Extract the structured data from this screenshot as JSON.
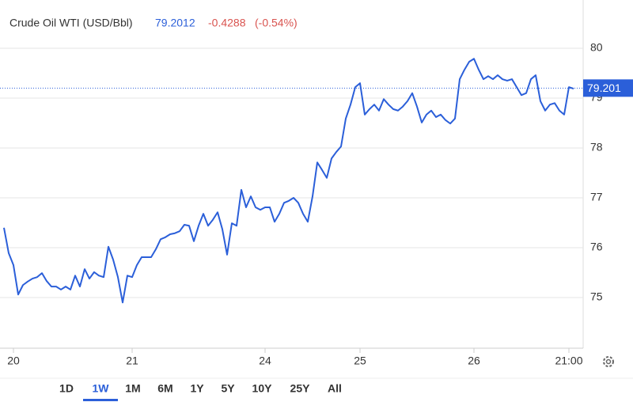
{
  "chart_data": {
    "type": "line",
    "header": {
      "name": "Crude Oil WTI (USD/Bbl)",
      "price": "79.2012",
      "change": "-0.4288",
      "change_pct": "(-0.54%)"
    },
    "categories": [
      null,
      null,
      "20",
      null,
      null,
      null,
      null,
      null,
      null,
      null,
      null,
      null,
      null,
      null,
      null,
      null,
      null,
      null,
      null,
      null,
      null,
      null,
      null,
      null,
      null,
      null,
      null,
      "21",
      null,
      null,
      null,
      null,
      null,
      null,
      null,
      null,
      null,
      null,
      null,
      null,
      null,
      null,
      null,
      null,
      null,
      null,
      null,
      null,
      null,
      null,
      null,
      null,
      null,
      null,
      null,
      "24",
      null,
      null,
      null,
      null,
      null,
      null,
      null,
      null,
      null,
      null,
      null,
      null,
      null,
      null,
      null,
      null,
      null,
      null,
      null,
      "25",
      null,
      null,
      null,
      null,
      null,
      null,
      null,
      null,
      null,
      null,
      null,
      null,
      null,
      null,
      null,
      null,
      null,
      null,
      null,
      null,
      null,
      null,
      null,
      "26",
      null,
      null,
      null,
      null,
      null,
      null,
      null,
      null,
      null,
      null,
      null,
      null,
      null,
      null,
      null,
      null,
      null,
      null,
      null,
      "21:00",
      null
    ],
    "series": [
      {
        "name": "Crude Oil WTI",
        "color": "#2b5fd9",
        "values": [
          76.4,
          75.89,
          75.65,
          75.06,
          75.25,
          75.32,
          75.38,
          75.41,
          75.49,
          75.33,
          75.22,
          75.22,
          75.16,
          75.22,
          75.16,
          75.44,
          75.22,
          75.57,
          75.38,
          75.51,
          75.44,
          75.41,
          76.02,
          75.76,
          75.41,
          74.9,
          75.44,
          75.41,
          75.65,
          75.81,
          75.81,
          75.81,
          75.97,
          76.17,
          76.21,
          76.27,
          76.29,
          76.33,
          76.46,
          76.44,
          76.13,
          76.44,
          76.68,
          76.44,
          76.56,
          76.71,
          76.37,
          75.86,
          76.49,
          76.44,
          77.16,
          76.81,
          77.03,
          76.81,
          76.76,
          76.81,
          76.81,
          76.52,
          76.68,
          76.9,
          76.94,
          77.0,
          76.9,
          76.68,
          76.52,
          77.03,
          77.71,
          77.56,
          77.4,
          77.79,
          77.92,
          78.03,
          78.59,
          78.87,
          79.22,
          79.3,
          78.67,
          78.78,
          78.87,
          78.75,
          78.98,
          78.87,
          78.78,
          78.75,
          78.83,
          78.94,
          79.1,
          78.83,
          78.51,
          78.67,
          78.75,
          78.62,
          78.67,
          78.56,
          78.49,
          78.59,
          79.38,
          79.57,
          79.73,
          79.79,
          79.57,
          79.38,
          79.44,
          79.38,
          79.46,
          79.38,
          79.35,
          79.38,
          79.22,
          79.06,
          79.1,
          79.38,
          79.46,
          78.94,
          78.75,
          78.87,
          78.9,
          78.75,
          78.67,
          79.22,
          79.19
        ]
      }
    ],
    "ylim": [
      74,
      81
    ],
    "yticks": [
      75,
      76,
      77,
      78,
      79,
      80
    ],
    "grid": true,
    "price_line": {
      "value": 79.2012,
      "label": "79.201"
    },
    "ranges": [
      "1D",
      "1W",
      "1M",
      "6M",
      "1Y",
      "5Y",
      "10Y",
      "25Y",
      "All"
    ],
    "selected_range": 1
  }
}
